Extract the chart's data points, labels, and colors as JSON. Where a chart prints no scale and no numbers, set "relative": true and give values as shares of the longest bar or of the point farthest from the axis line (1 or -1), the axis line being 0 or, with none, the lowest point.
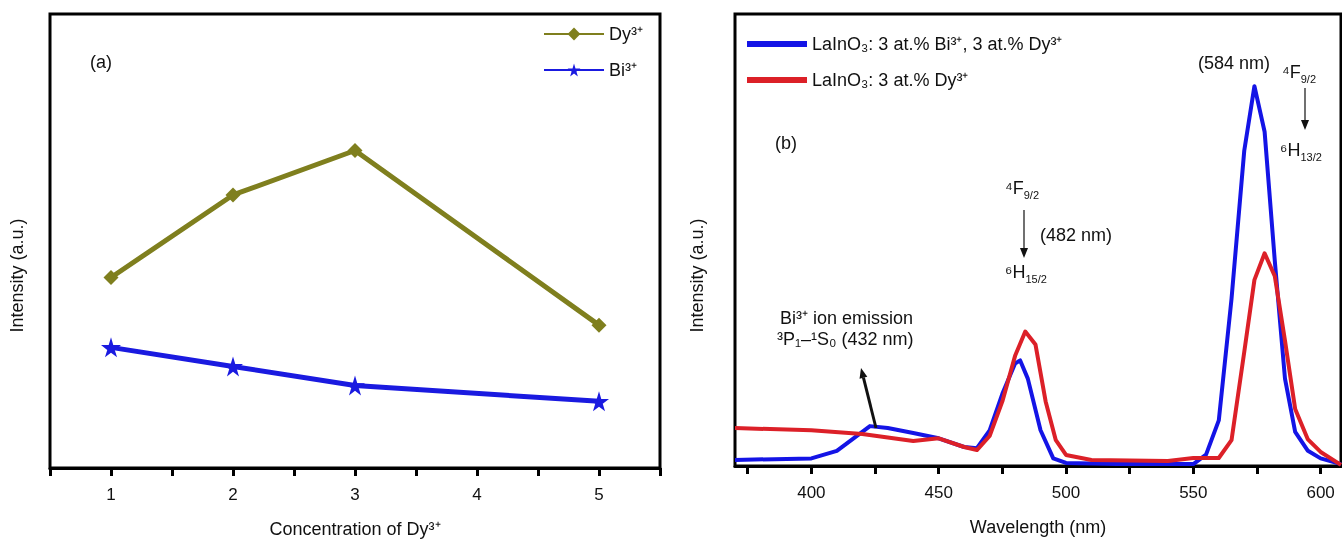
{
  "chart_data": [
    {
      "type": "line",
      "relative": true,
      "xlabel": "Concentration of Dy³⁺",
      "ylabel": "Intensity (a.u.)",
      "annotations": [
        "(a)"
      ],
      "legend": "top right",
      "grid": false,
      "xlim": [
        0.5,
        5.5
      ],
      "xticks": [
        {
          "value": 0.5,
          "label": null
        },
        1,
        {
          "value": 1.5,
          "label": null
        },
        2,
        {
          "value": 2.5,
          "label": null
        },
        3,
        {
          "value": 3.5,
          "label": null
        },
        4,
        {
          "value": 4.5,
          "label": null
        },
        5,
        {
          "value": 5.5,
          "label": null
        }
      ],
      "x": [
        1,
        2,
        3,
        5
      ],
      "series": [
        {
          "name": "Dy³⁺",
          "color": "#7f7f1e",
          "marker": "diamond",
          "values": [
            0.6,
            0.86,
            1,
            0.45
          ]
        },
        {
          "name": "Bi³⁺",
          "color": "#1a1ae0",
          "marker": "star",
          "values": [
            0.38,
            0.32,
            0.26,
            0.21
          ]
        }
      ]
    },
    {
      "type": "line",
      "relative": true,
      "xlabel": "Wavelength (nm)",
      "ylabel": "Intensity (a.u.)",
      "legend": "top left",
      "grid": false,
      "marker": "none",
      "annotations": [
        "(b)",
        "Bi³⁺ ion emission",
        "³P₁–¹S₀ (432 nm)",
        "⁴F$_{9/2}$",
        "(482 nm)",
        "⁶H$_{15/2}$",
        "(584 nm)",
        "⁴F$_{9/2}$",
        "⁶H$_{13/2}$"
      ],
      "xlim": [
        370,
        608
      ],
      "xticks": [
        {
          "value": 375,
          "label": null
        },
        400,
        {
          "value": 425,
          "label": null
        },
        450,
        {
          "value": 475,
          "label": null
        },
        500,
        {
          "value": 525,
          "label": null
        },
        550,
        {
          "value": 575,
          "label": null
        },
        600
      ],
      "series": [
        {
          "name": "LaInO₃: 3 at.% Bi³⁺, 3 at.% Dy³⁺",
          "color": "#1414e6",
          "x": [
            370,
            400,
            410,
            423,
            430,
            440,
            450,
            460,
            465,
            470,
            475,
            480,
            482,
            485,
            490,
            495,
            500,
            520,
            550,
            555,
            560,
            565,
            570,
            574,
            578,
            582,
            586,
            590,
            595,
            600,
            608
          ],
          "values": [
            0.016,
            0.02,
            0.04,
            0.105,
            0.1,
            0.087,
            0.073,
            0.05,
            0.047,
            0.094,
            0.19,
            0.27,
            0.278,
            0.23,
            0.094,
            0.02,
            0.008,
            0.005,
            0.005,
            0.03,
            0.12,
            0.44,
            0.83,
            1,
            0.88,
            0.54,
            0.23,
            0.09,
            0.04,
            0.02,
            0.005
          ]
        },
        {
          "name": "LaInO₃: 3 at.% Dy³⁺",
          "color": "#dc2028",
          "x": [
            370,
            400,
            420,
            440,
            450,
            460,
            465,
            470,
            475,
            480,
            484,
            488,
            492,
            496,
            500,
            510,
            540,
            550,
            560,
            565,
            570,
            574,
            578,
            582,
            586,
            590,
            595,
            600,
            608
          ],
          "values": [
            0.1,
            0.094,
            0.084,
            0.066,
            0.073,
            0.05,
            0.042,
            0.079,
            0.17,
            0.29,
            0.354,
            0.32,
            0.17,
            0.068,
            0.029,
            0.016,
            0.013,
            0.021,
            0.021,
            0.068,
            0.3,
            0.49,
            0.56,
            0.5,
            0.33,
            0.15,
            0.07,
            0.037,
            0.003
          ]
        }
      ]
    }
  ]
}
